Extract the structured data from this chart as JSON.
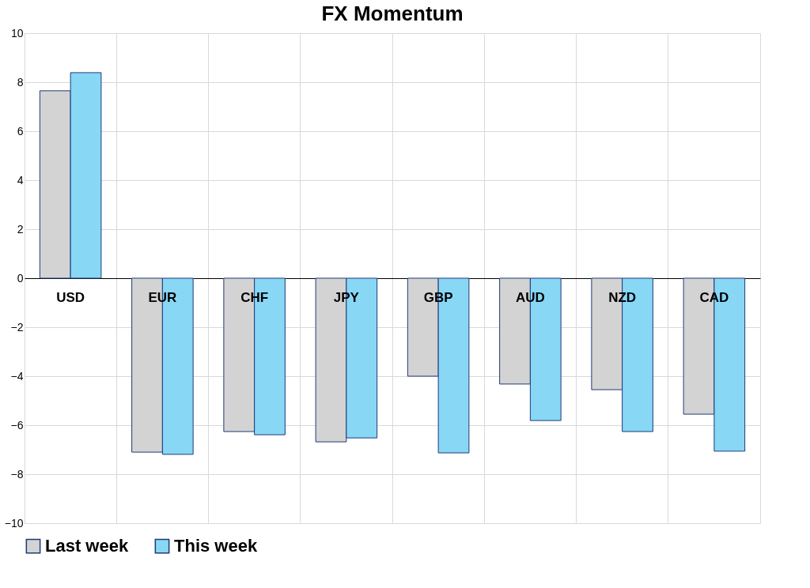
{
  "chart_data": {
    "type": "bar",
    "title": "FX Momentum",
    "categories": [
      "USD",
      "EUR",
      "CHF",
      "JPY",
      "GBP",
      "AUD",
      "NZD",
      "CAD"
    ],
    "series": [
      {
        "name": "Last week",
        "color": "#d3d3d3",
        "values": [
          7.65,
          -7.1,
          -6.26,
          -6.68,
          -4.0,
          -4.32,
          -4.55,
          -5.55
        ]
      },
      {
        "name": "This week",
        "color": "#87d7f5",
        "values": [
          8.39,
          -7.19,
          -6.39,
          -6.52,
          -7.13,
          -5.81,
          -6.26,
          -7.06
        ]
      }
    ],
    "ylim": [
      -10,
      10
    ],
    "yticks": [
      -10,
      -8,
      -6,
      -4,
      -2,
      0,
      2,
      4,
      6,
      8,
      10
    ],
    "grid": true,
    "legend": "bottom"
  }
}
